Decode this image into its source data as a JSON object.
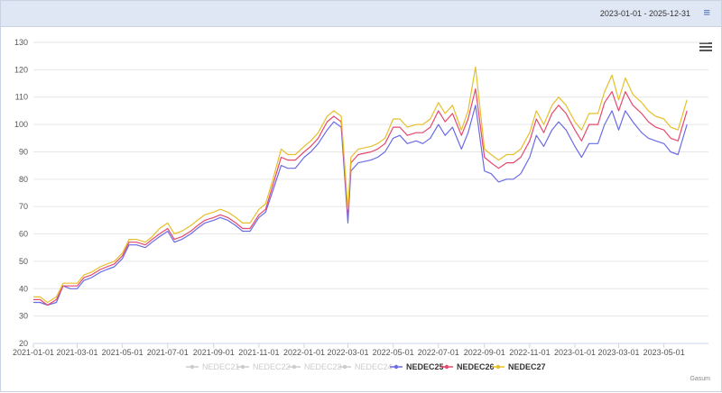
{
  "header": {
    "date_range": "2023-01-01 - 2025-12-31",
    "menu_icon": "hamburger-icon"
  },
  "export_icon": "hamburger-icon",
  "credit": "Gasum",
  "chart_data": {
    "type": "line",
    "title": "",
    "xlabel": "",
    "ylabel": "",
    "ylim": [
      20,
      130
    ],
    "yticks": [
      20,
      30,
      40,
      50,
      60,
      70,
      80,
      90,
      100,
      110,
      120,
      130
    ],
    "xlim": [
      "2021-01-01",
      "2023-06-30"
    ],
    "xticks": [
      "2021-01-01",
      "2021-03-01",
      "2021-05-01",
      "2021-07-01",
      "2021-09-01",
      "2021-11-01",
      "2022-01-01",
      "2022-03-01",
      "2022-05-01",
      "2022-07-01",
      "2022-09-01",
      "2022-11-01",
      "2023-01-01",
      "2023-03-01",
      "2023-05-01"
    ],
    "grid": true,
    "legend_position": "bottom",
    "series": [
      {
        "name": "NEDEC21",
        "visible": false,
        "color": "#cccccc",
        "x": [],
        "values": []
      },
      {
        "name": "NEDEC22",
        "visible": false,
        "color": "#cccccc",
        "x": [],
        "values": []
      },
      {
        "name": "NEDEC23",
        "visible": false,
        "color": "#cccccc",
        "x": [],
        "values": []
      },
      {
        "name": "NEDEC24",
        "visible": false,
        "color": "#cccccc",
        "x": [],
        "values": []
      },
      {
        "name": "NEDEC25",
        "visible": true,
        "color": "#6b6be6",
        "x": [
          "2021-01-01",
          "2021-01-10",
          "2021-01-20",
          "2021-02-01",
          "2021-02-10",
          "2021-02-20",
          "2021-03-01",
          "2021-03-10",
          "2021-03-20",
          "2021-04-01",
          "2021-04-10",
          "2021-04-20",
          "2021-05-01",
          "2021-05-10",
          "2021-05-20",
          "2021-06-01",
          "2021-06-10",
          "2021-06-20",
          "2021-07-01",
          "2021-07-10",
          "2021-07-20",
          "2021-08-01",
          "2021-08-10",
          "2021-08-20",
          "2021-09-01",
          "2021-09-10",
          "2021-09-20",
          "2021-10-01",
          "2021-10-10",
          "2021-10-20",
          "2021-11-01",
          "2021-11-10",
          "2021-11-20",
          "2021-12-01",
          "2021-12-10",
          "2021-12-20",
          "2022-01-01",
          "2022-01-10",
          "2022-01-20",
          "2022-02-01",
          "2022-02-10",
          "2022-02-20",
          "2022-03-01",
          "2022-03-05",
          "2022-03-15",
          "2022-04-01",
          "2022-04-10",
          "2022-04-20",
          "2022-05-01",
          "2022-05-10",
          "2022-05-20",
          "2022-06-01",
          "2022-06-10",
          "2022-06-20",
          "2022-07-01",
          "2022-07-10",
          "2022-07-20",
          "2022-08-01",
          "2022-08-10",
          "2022-08-20",
          "2022-09-01",
          "2022-09-10",
          "2022-09-20",
          "2022-10-01",
          "2022-10-10",
          "2022-10-20",
          "2022-11-01",
          "2022-11-10",
          "2022-11-20",
          "2022-12-01",
          "2022-12-10",
          "2022-12-20",
          "2023-01-01",
          "2023-01-10",
          "2023-01-20",
          "2023-02-01",
          "2023-02-10",
          "2023-02-20",
          "2023-03-01",
          "2023-03-10",
          "2023-03-20",
          "2023-04-01",
          "2023-04-10",
          "2023-04-20",
          "2023-05-01",
          "2023-05-10",
          "2023-05-20",
          "2023-06-01"
        ],
        "values": [
          35,
          35,
          34,
          35,
          41,
          40,
          40,
          43,
          44,
          46,
          47,
          48,
          51,
          56,
          56,
          55,
          57,
          59,
          61,
          57,
          58,
          60,
          62,
          64,
          65,
          66,
          65,
          63,
          61,
          61,
          66,
          68,
          76,
          85,
          84,
          84,
          88,
          90,
          93,
          98,
          101,
          99,
          64,
          83,
          86,
          87,
          88,
          90,
          95,
          96,
          93,
          94,
          93,
          95,
          100,
          96,
          99,
          91,
          97,
          107,
          83,
          82,
          79,
          80,
          80,
          82,
          88,
          96,
          92,
          98,
          101,
          98,
          92,
          88,
          93,
          93,
          100,
          105,
          98,
          105,
          101,
          97,
          95,
          94,
          93,
          90,
          89,
          100
        ]
      },
      {
        "name": "NEDEC26",
        "visible": true,
        "color": "#e5496d",
        "x": [
          "2021-01-01",
          "2021-01-10",
          "2021-01-20",
          "2021-02-01",
          "2021-02-10",
          "2021-02-20",
          "2021-03-01",
          "2021-03-10",
          "2021-03-20",
          "2021-04-01",
          "2021-04-10",
          "2021-04-20",
          "2021-05-01",
          "2021-05-10",
          "2021-05-20",
          "2021-06-01",
          "2021-06-10",
          "2021-06-20",
          "2021-07-01",
          "2021-07-10",
          "2021-07-20",
          "2021-08-01",
          "2021-08-10",
          "2021-08-20",
          "2021-09-01",
          "2021-09-10",
          "2021-09-20",
          "2021-10-01",
          "2021-10-10",
          "2021-10-20",
          "2021-11-01",
          "2021-11-10",
          "2021-11-20",
          "2021-12-01",
          "2021-12-10",
          "2021-12-20",
          "2022-01-01",
          "2022-01-10",
          "2022-01-20",
          "2022-02-01",
          "2022-02-10",
          "2022-02-20",
          "2022-03-01",
          "2022-03-05",
          "2022-03-15",
          "2022-04-01",
          "2022-04-10",
          "2022-04-20",
          "2022-05-01",
          "2022-05-10",
          "2022-05-20",
          "2022-06-01",
          "2022-06-10",
          "2022-06-20",
          "2022-07-01",
          "2022-07-10",
          "2022-07-20",
          "2022-08-01",
          "2022-08-10",
          "2022-08-20",
          "2022-09-01",
          "2022-09-10",
          "2022-09-20",
          "2022-10-01",
          "2022-10-10",
          "2022-10-20",
          "2022-11-01",
          "2022-11-10",
          "2022-11-20",
          "2022-12-01",
          "2022-12-10",
          "2022-12-20",
          "2023-01-01",
          "2023-01-10",
          "2023-01-20",
          "2023-02-01",
          "2023-02-10",
          "2023-02-20",
          "2023-03-01",
          "2023-03-10",
          "2023-03-20",
          "2023-04-01",
          "2023-04-10",
          "2023-04-20",
          "2023-05-01",
          "2023-05-10",
          "2023-05-20",
          "2023-06-01"
        ],
        "values": [
          36,
          36,
          34,
          36,
          41,
          41,
          41,
          44,
          45,
          47,
          48,
          49,
          52,
          57,
          57,
          56,
          58,
          60,
          62,
          58,
          59,
          61,
          63,
          65,
          66,
          67,
          66,
          64,
          62,
          62,
          67,
          69,
          78,
          88,
          87,
          87,
          90,
          92,
          95,
          101,
          103,
          101,
          67,
          86,
          89,
          90,
          91,
          93,
          99,
          99,
          96,
          97,
          97,
          99,
          105,
          101,
          104,
          96,
          102,
          113,
          88,
          86,
          84,
          86,
          86,
          88,
          94,
          102,
          97,
          104,
          107,
          104,
          98,
          94,
          100,
          100,
          108,
          112,
          105,
          112,
          107,
          104,
          101,
          99,
          98,
          95,
          94,
          105
        ]
      },
      {
        "name": "NEDEC27",
        "visible": true,
        "color": "#e5c02b",
        "x": [
          "2021-01-01",
          "2021-01-10",
          "2021-01-20",
          "2021-02-01",
          "2021-02-10",
          "2021-02-20",
          "2021-03-01",
          "2021-03-10",
          "2021-03-20",
          "2021-04-01",
          "2021-04-10",
          "2021-04-20",
          "2021-05-01",
          "2021-05-10",
          "2021-05-20",
          "2021-06-01",
          "2021-06-10",
          "2021-06-20",
          "2021-07-01",
          "2021-07-10",
          "2021-07-20",
          "2021-08-01",
          "2021-08-10",
          "2021-08-20",
          "2021-09-01",
          "2021-09-10",
          "2021-09-20",
          "2021-10-01",
          "2021-10-10",
          "2021-10-20",
          "2021-11-01",
          "2021-11-10",
          "2021-11-20",
          "2021-12-01",
          "2021-12-10",
          "2021-12-20",
          "2022-01-01",
          "2022-01-10",
          "2022-01-20",
          "2022-02-01",
          "2022-02-10",
          "2022-02-20",
          "2022-03-01",
          "2022-03-05",
          "2022-03-15",
          "2022-04-01",
          "2022-04-10",
          "2022-04-20",
          "2022-05-01",
          "2022-05-10",
          "2022-05-20",
          "2022-06-01",
          "2022-06-10",
          "2022-06-20",
          "2022-07-01",
          "2022-07-10",
          "2022-07-20",
          "2022-08-01",
          "2022-08-10",
          "2022-08-20",
          "2022-09-01",
          "2022-09-10",
          "2022-09-20",
          "2022-10-01",
          "2022-10-10",
          "2022-10-20",
          "2022-11-01",
          "2022-11-10",
          "2022-11-20",
          "2022-12-01",
          "2022-12-10",
          "2022-12-20",
          "2023-01-01",
          "2023-01-10",
          "2023-01-20",
          "2023-02-01",
          "2023-02-10",
          "2023-02-20",
          "2023-03-01",
          "2023-03-10",
          "2023-03-20",
          "2023-04-01",
          "2023-04-10",
          "2023-04-20",
          "2023-05-01",
          "2023-05-10",
          "2023-05-20",
          "2023-06-01"
        ],
        "values": [
          37,
          37,
          35,
          37,
          42,
          42,
          42,
          45,
          46,
          48,
          49,
          50,
          53,
          58,
          58,
          57,
          59,
          62,
          64,
          60,
          61,
          63,
          65,
          67,
          68,
          69,
          68,
          66,
          64,
          64,
          69,
          71,
          80,
          91,
          89,
          89,
          92,
          94,
          97,
          103,
          105,
          103,
          69,
          88,
          91,
          92,
          93,
          95,
          102,
          102,
          99,
          100,
          100,
          102,
          108,
          104,
          107,
          98,
          105,
          121,
          91,
          89,
          87,
          89,
          89,
          91,
          97,
          105,
          100,
          107,
          110,
          107,
          101,
          98,
          104,
          104,
          112,
          118,
          109,
          117,
          111,
          108,
          105,
          103,
          102,
          99,
          98,
          109
        ]
      }
    ]
  }
}
